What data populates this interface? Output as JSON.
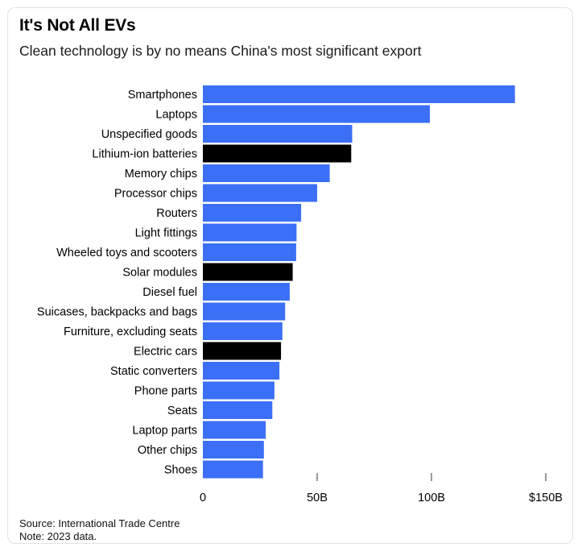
{
  "header": {
    "title": "It's Not All EVs",
    "subtitle": "Clean technology is by no means China's most significant export"
  },
  "footer": {
    "source": "Source: International Trade Centre",
    "note": "Note: 2023 data."
  },
  "colors": {
    "bar_default": "#3b6ff5",
    "bar_highlight": "#000000",
    "tick": "#333333",
    "text": "#000000"
  },
  "chart_data": {
    "type": "bar",
    "orientation": "horizontal",
    "title": "It's Not All EVs",
    "subtitle": "Clean technology is by no means China's most significant export",
    "xlabel": "",
    "ylabel": "",
    "xlim": [
      0,
      150
    ],
    "units": "billion USD",
    "grid": false,
    "legend": "none",
    "ticks": [
      {
        "value": 0,
        "label": "0"
      },
      {
        "value": 50,
        "label": "50B"
      },
      {
        "value": 100,
        "label": "100B"
      },
      {
        "value": 150,
        "label": "$150B"
      }
    ],
    "categories": [
      "Smartphones",
      "Laptops",
      "Unspecified goods",
      "Lithium-ion batteries",
      "Memory chips",
      "Processor chips",
      "Routers",
      "Light fittings",
      "Wheeled toys and scooters",
      "Solar modules",
      "Diesel fuel",
      "Suicases, backpacks and bags",
      "Furniture, excluding seats",
      "Electric cars",
      "Static converters",
      "Phone parts",
      "Seats",
      "Laptop parts",
      "Other chips",
      "Shoes"
    ],
    "values": [
      136.5,
      99.3,
      65.3,
      64.9,
      55.5,
      50.0,
      43.0,
      41.0,
      40.8,
      39.3,
      38.0,
      36.0,
      34.8,
      34.2,
      33.5,
      31.3,
      30.4,
      27.5,
      26.7,
      26.3
    ],
    "highlighted": [
      "Lithium-ion batteries",
      "Solar modules",
      "Electric cars"
    ]
  }
}
